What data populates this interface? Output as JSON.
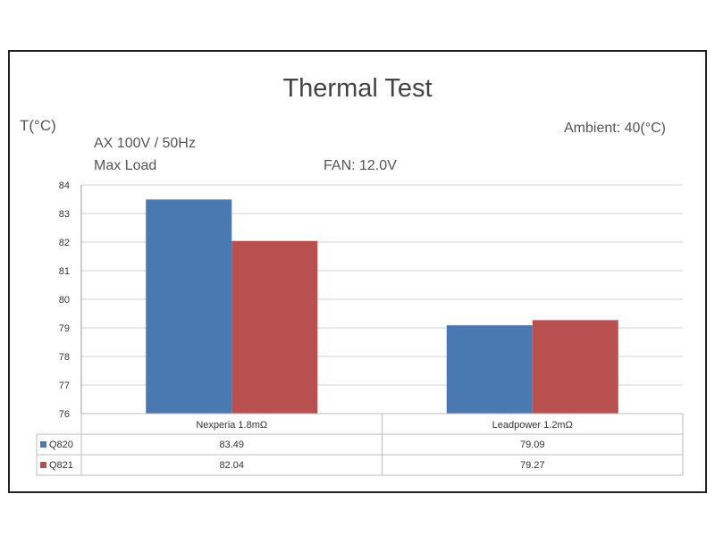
{
  "chart_data": {
    "type": "bar",
    "title": "Thermal Test",
    "ylabel": "T(°C)",
    "notes": {
      "ambient": "Ambient: 40(°C)",
      "line1": "AX 100V / 50Hz",
      "line2": "Max Load",
      "fan": "FAN: 12.0V"
    },
    "ylim": [
      76,
      84
    ],
    "yticks": [
      "76",
      "77",
      "78",
      "79",
      "80",
      "81",
      "82",
      "83",
      "84"
    ],
    "categories": [
      "Nexperia 1.8mΩ",
      "Leadpower 1.2mΩ"
    ],
    "series": [
      {
        "name": "Q820",
        "color": "#4a78b0",
        "values": [
          83.49,
          79.09
        ],
        "labels": [
          "83.49",
          "79.09"
        ]
      },
      {
        "name": "Q821",
        "color": "#b85050",
        "values": [
          82.04,
          79.27
        ],
        "labels": [
          "82.04",
          "79.27"
        ]
      }
    ],
    "grid": true,
    "legend": "data-table"
  }
}
